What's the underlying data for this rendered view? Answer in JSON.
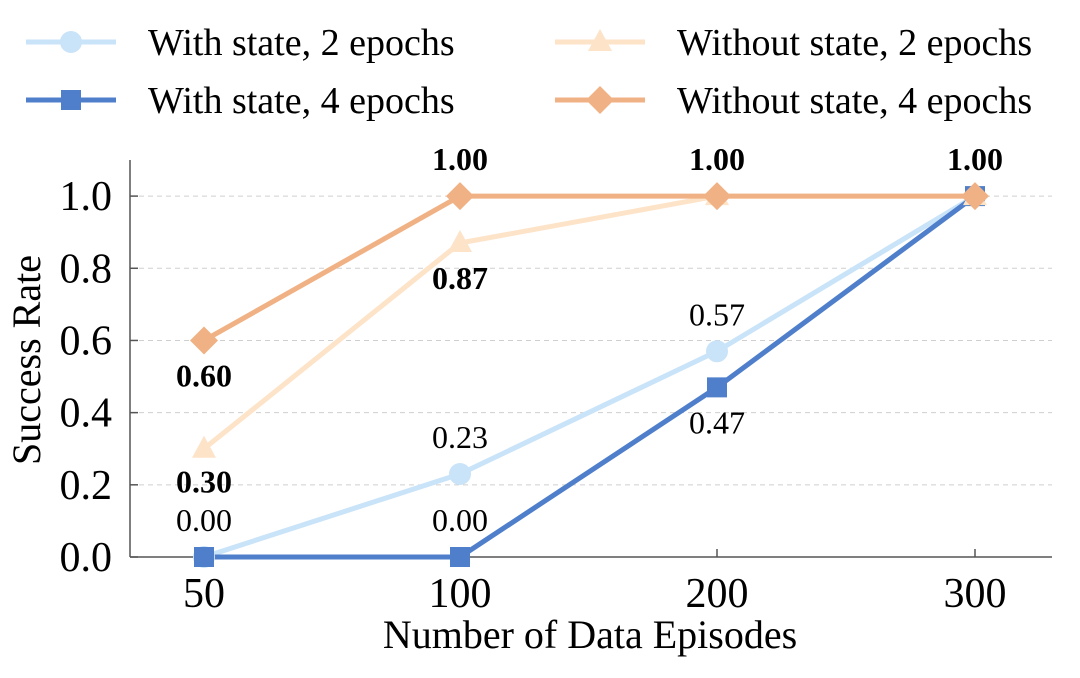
{
  "chart_data": {
    "type": "line",
    "xlabel": "Number of Data Episodes",
    "ylabel": "Success Rate",
    "categories": [
      "50",
      "100",
      "200",
      "300"
    ],
    "ylim": [
      0,
      1.1
    ],
    "yticks": [
      "0.0",
      "0.2",
      "0.4",
      "0.6",
      "0.8",
      "1.0"
    ],
    "grid": true,
    "legend_position": "top",
    "series": [
      {
        "name": "With state, 2 epochs",
        "values": [
          0.0,
          0.23,
          0.57,
          1.0
        ],
        "labels": [
          "0.00",
          "0.23",
          "0.57",
          ""
        ],
        "label_bold": false,
        "color": "#c9e3f8",
        "marker": "circle"
      },
      {
        "name": "With state, 4 epochs",
        "values": [
          0.0,
          0.0,
          0.47,
          1.0
        ],
        "labels": [
          "",
          "0.00",
          "0.47",
          ""
        ],
        "label_bold": false,
        "color": "#4f7fcb",
        "marker": "square"
      },
      {
        "name": "Without state, 2 epochs",
        "values": [
          0.3,
          0.87,
          1.0,
          1.0
        ],
        "labels": [
          "0.30",
          "0.87",
          "",
          ""
        ],
        "label_bold": true,
        "color": "#fde3c8",
        "marker": "triangle"
      },
      {
        "name": "Without state, 4 epochs",
        "values": [
          0.6,
          1.0,
          1.0,
          1.0
        ],
        "labels": [
          "0.60",
          "1.00",
          "1.00",
          "1.00"
        ],
        "label_bold": true,
        "color": "#f0b284",
        "marker": "diamond"
      }
    ]
  }
}
